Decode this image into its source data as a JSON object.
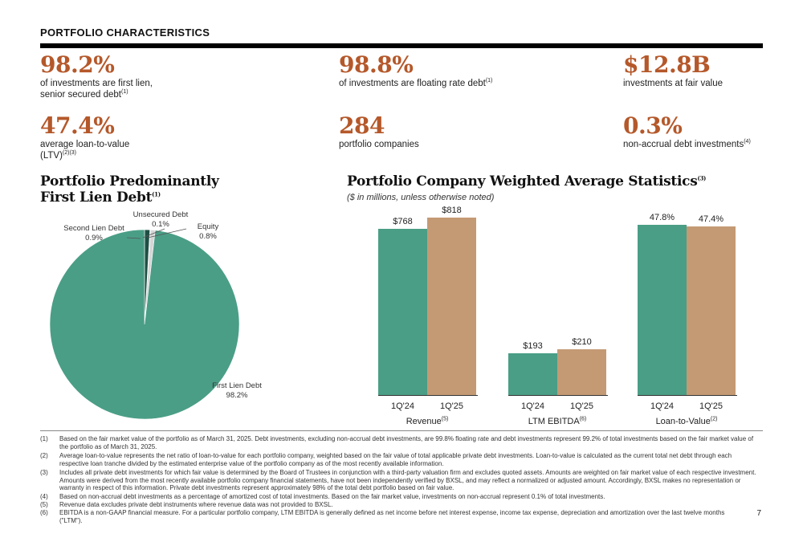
{
  "header": {
    "title": "PORTFOLIO CHARACTERISTICS"
  },
  "stats": [
    {
      "value": "98.2%",
      "line1": "of investments are first lien,",
      "line2": "senior secured debt",
      "sup": "(1)"
    },
    {
      "value": "98.8%",
      "line1": "of investments are floating rate debt",
      "line2": "",
      "sup": "(1)"
    },
    {
      "value": "$12.8B",
      "line1": "investments at fair value",
      "line2": "",
      "sup": ""
    },
    {
      "value": "47.4%",
      "line1": "average loan-to-value",
      "line2": "(LTV)",
      "sup": "(2)(3)"
    },
    {
      "value": "284",
      "line1": "portfolio companies",
      "line2": "",
      "sup": ""
    },
    {
      "value": "0.3%",
      "line1": "non-accrual debt investments",
      "line2": "",
      "sup": "(4)"
    }
  ],
  "pie_section": {
    "title_line1": "Portfolio Predominantly",
    "title_line2": "First Lien Debt",
    "title_sup": "(1)"
  },
  "bar_section": {
    "title": "Portfolio Company Weighted Average Statistics",
    "title_sup": "(3)",
    "subtitle": "($ in millions, unless otherwise noted)"
  },
  "chart_data": [
    {
      "type": "pie",
      "slices": [
        {
          "label": "First Lien Debt",
          "value": 98.2,
          "display": "98.2%",
          "color": "#4a9e86"
        },
        {
          "label": "Second Lien Debt",
          "value": 0.9,
          "display": "0.9%",
          "color": "#1f4f44"
        },
        {
          "label": "Unsecured Debt",
          "value": 0.1,
          "display": "0.1%",
          "color": "#6b6b6b"
        },
        {
          "label": "Equity",
          "value": 0.8,
          "display": "0.8%",
          "color": "#d6d6d6"
        }
      ]
    },
    {
      "type": "bar",
      "categories": [
        "Revenue",
        "LTM EBITDA",
        "Loan-to-Value"
      ],
      "category_sups": [
        "(5)",
        "(6)",
        "(2)"
      ],
      "series": [
        {
          "name": "1Q'24",
          "color": "#4a9e86",
          "values": [
            768,
            193,
            47.8
          ],
          "labels": [
            "$768",
            "$193",
            "47.8%"
          ]
        },
        {
          "name": "1Q'25",
          "color": "#c49a74",
          "values": [
            818,
            210,
            47.4
          ],
          "labels": [
            "$818",
            "$210",
            "47.4%"
          ]
        }
      ]
    }
  ],
  "footnotes": [
    {
      "num": "(1)",
      "text": "Based on the fair market value of the portfolio as of March 31, 2025. Debt investments, excluding non-accrual debt investments, are 99.8% floating rate and debt investments represent 99.2% of total investments based on the fair market value of the portfolio as of March 31, 2025."
    },
    {
      "num": "(2)",
      "text": "Average loan-to-value represents the net ratio of loan-to-value for each portfolio company, weighted based on the fair value of total applicable private debt investments. Loan-to-value is calculated as the current total net debt through each respective loan tranche divided by the estimated enterprise value of the portfolio company as of the most recently available information."
    },
    {
      "num": "(3)",
      "text": "Includes all private debt investments for which fair value is determined by the Board of Trustees in conjunction with a third-party valuation firm and excludes quoted assets. Amounts are weighted on fair market value of each respective investment. Amounts were derived from the most recently available portfolio company financial statements, have not been independently verified by BXSL, and may reflect a normalized or adjusted amount. Accordingly, BXSL makes no representation or warranty in respect of this information. Private debt investments represent approximately 98% of the total debt portfolio based on fair value."
    },
    {
      "num": "(4)",
      "text": "Based on non-accrual debt investments as a percentage of amortized cost of total investments. Based on the fair market value, investments on non-accrual represent 0.1% of total investments."
    },
    {
      "num": "(5)",
      "text": "Revenue data excludes private debt instruments where revenue data was not provided to BXSL."
    },
    {
      "num": "(6)",
      "text": "EBITDA is a non-GAAP financial measure. For a particular portfolio company, LTM EBITDA is generally defined as net income before net interest expense, income tax expense, depreciation and amortization over the last twelve months (\"LTM\")."
    }
  ],
  "page_number": "7"
}
